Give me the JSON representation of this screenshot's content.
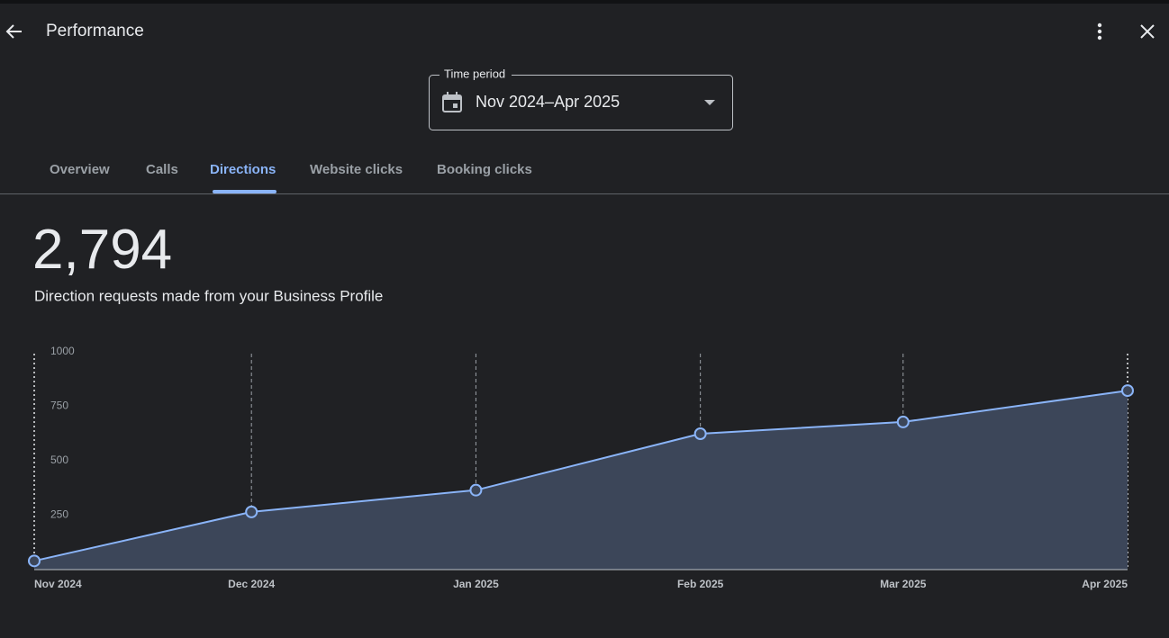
{
  "header": {
    "title": "Performance"
  },
  "time_period": {
    "label": "Time period",
    "value": "Nov 2024–Apr 2025"
  },
  "tabs": [
    "Overview",
    "Calls",
    "Directions",
    "Website clicks",
    "Booking clicks"
  ],
  "summary": {
    "value": "2,794",
    "caption": "Direction requests made from your Business Profile"
  },
  "chart_data": {
    "type": "area",
    "categories": [
      "Nov 2024",
      "Dec 2024",
      "Jan 2025",
      "Feb 2025",
      "Mar 2025",
      "Apr 2025"
    ],
    "values": [
      40,
      265,
      365,
      624,
      678,
      822
    ],
    "color": "#8ab4f8",
    "ylim": [
      0,
      1000
    ],
    "yticks": [
      250,
      500,
      750,
      1000
    ],
    "grid": false
  }
}
